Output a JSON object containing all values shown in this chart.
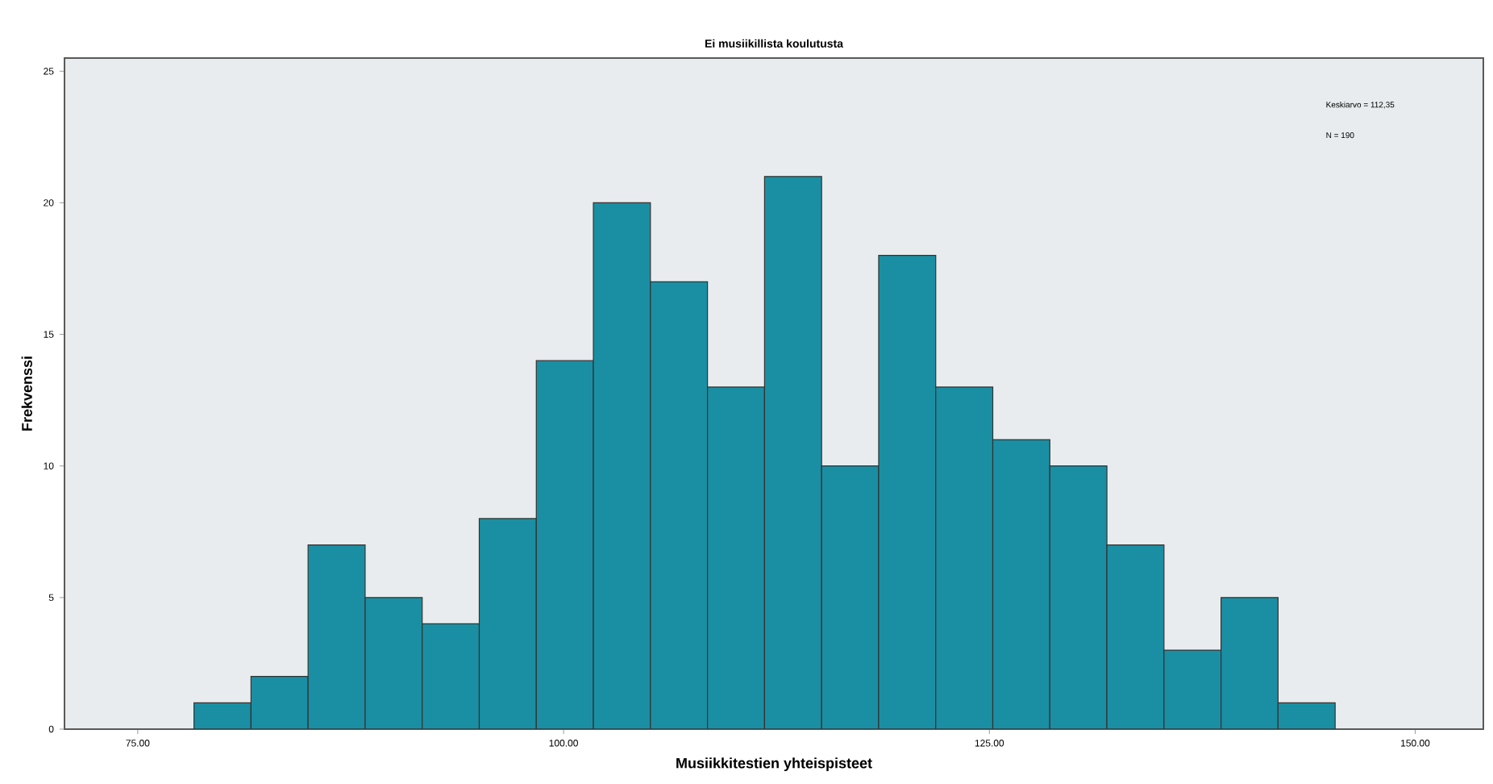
{
  "chart_data": {
    "type": "histogram",
    "title": "Ei musiikillista koulutusta",
    "xlabel": "Musiikkitestien yhteispisteet",
    "ylabel": "Frekvenssi",
    "bins": [
      78.3,
      81.65,
      85,
      88.35,
      91.7,
      95.05,
      98.4,
      101.75,
      105.1,
      108.45,
      111.8,
      115.15,
      118.5,
      121.85,
      125.2,
      128.55,
      131.9,
      135.25,
      138.6,
      141.95,
      145.3
    ],
    "values": [
      1,
      2,
      7,
      5,
      4,
      8,
      14,
      20,
      17,
      13,
      21,
      10,
      18,
      13,
      11,
      10,
      7,
      3,
      5,
      1
    ],
    "color": "#1a8fa3",
    "xlim": [
      70.7,
      154
    ],
    "ylim": [
      0,
      25.5
    ],
    "xticks": [
      {
        "value": 75,
        "label": "75.00"
      },
      {
        "value": 100,
        "label": "100.00"
      },
      {
        "value": 125,
        "label": "125.00"
      },
      {
        "value": 150,
        "label": "150.00"
      }
    ],
    "yticks": [
      0,
      5,
      10,
      15,
      20,
      25
    ],
    "annotations": [
      "Keskiarvo = 112,35",
      "N = 190"
    ]
  }
}
